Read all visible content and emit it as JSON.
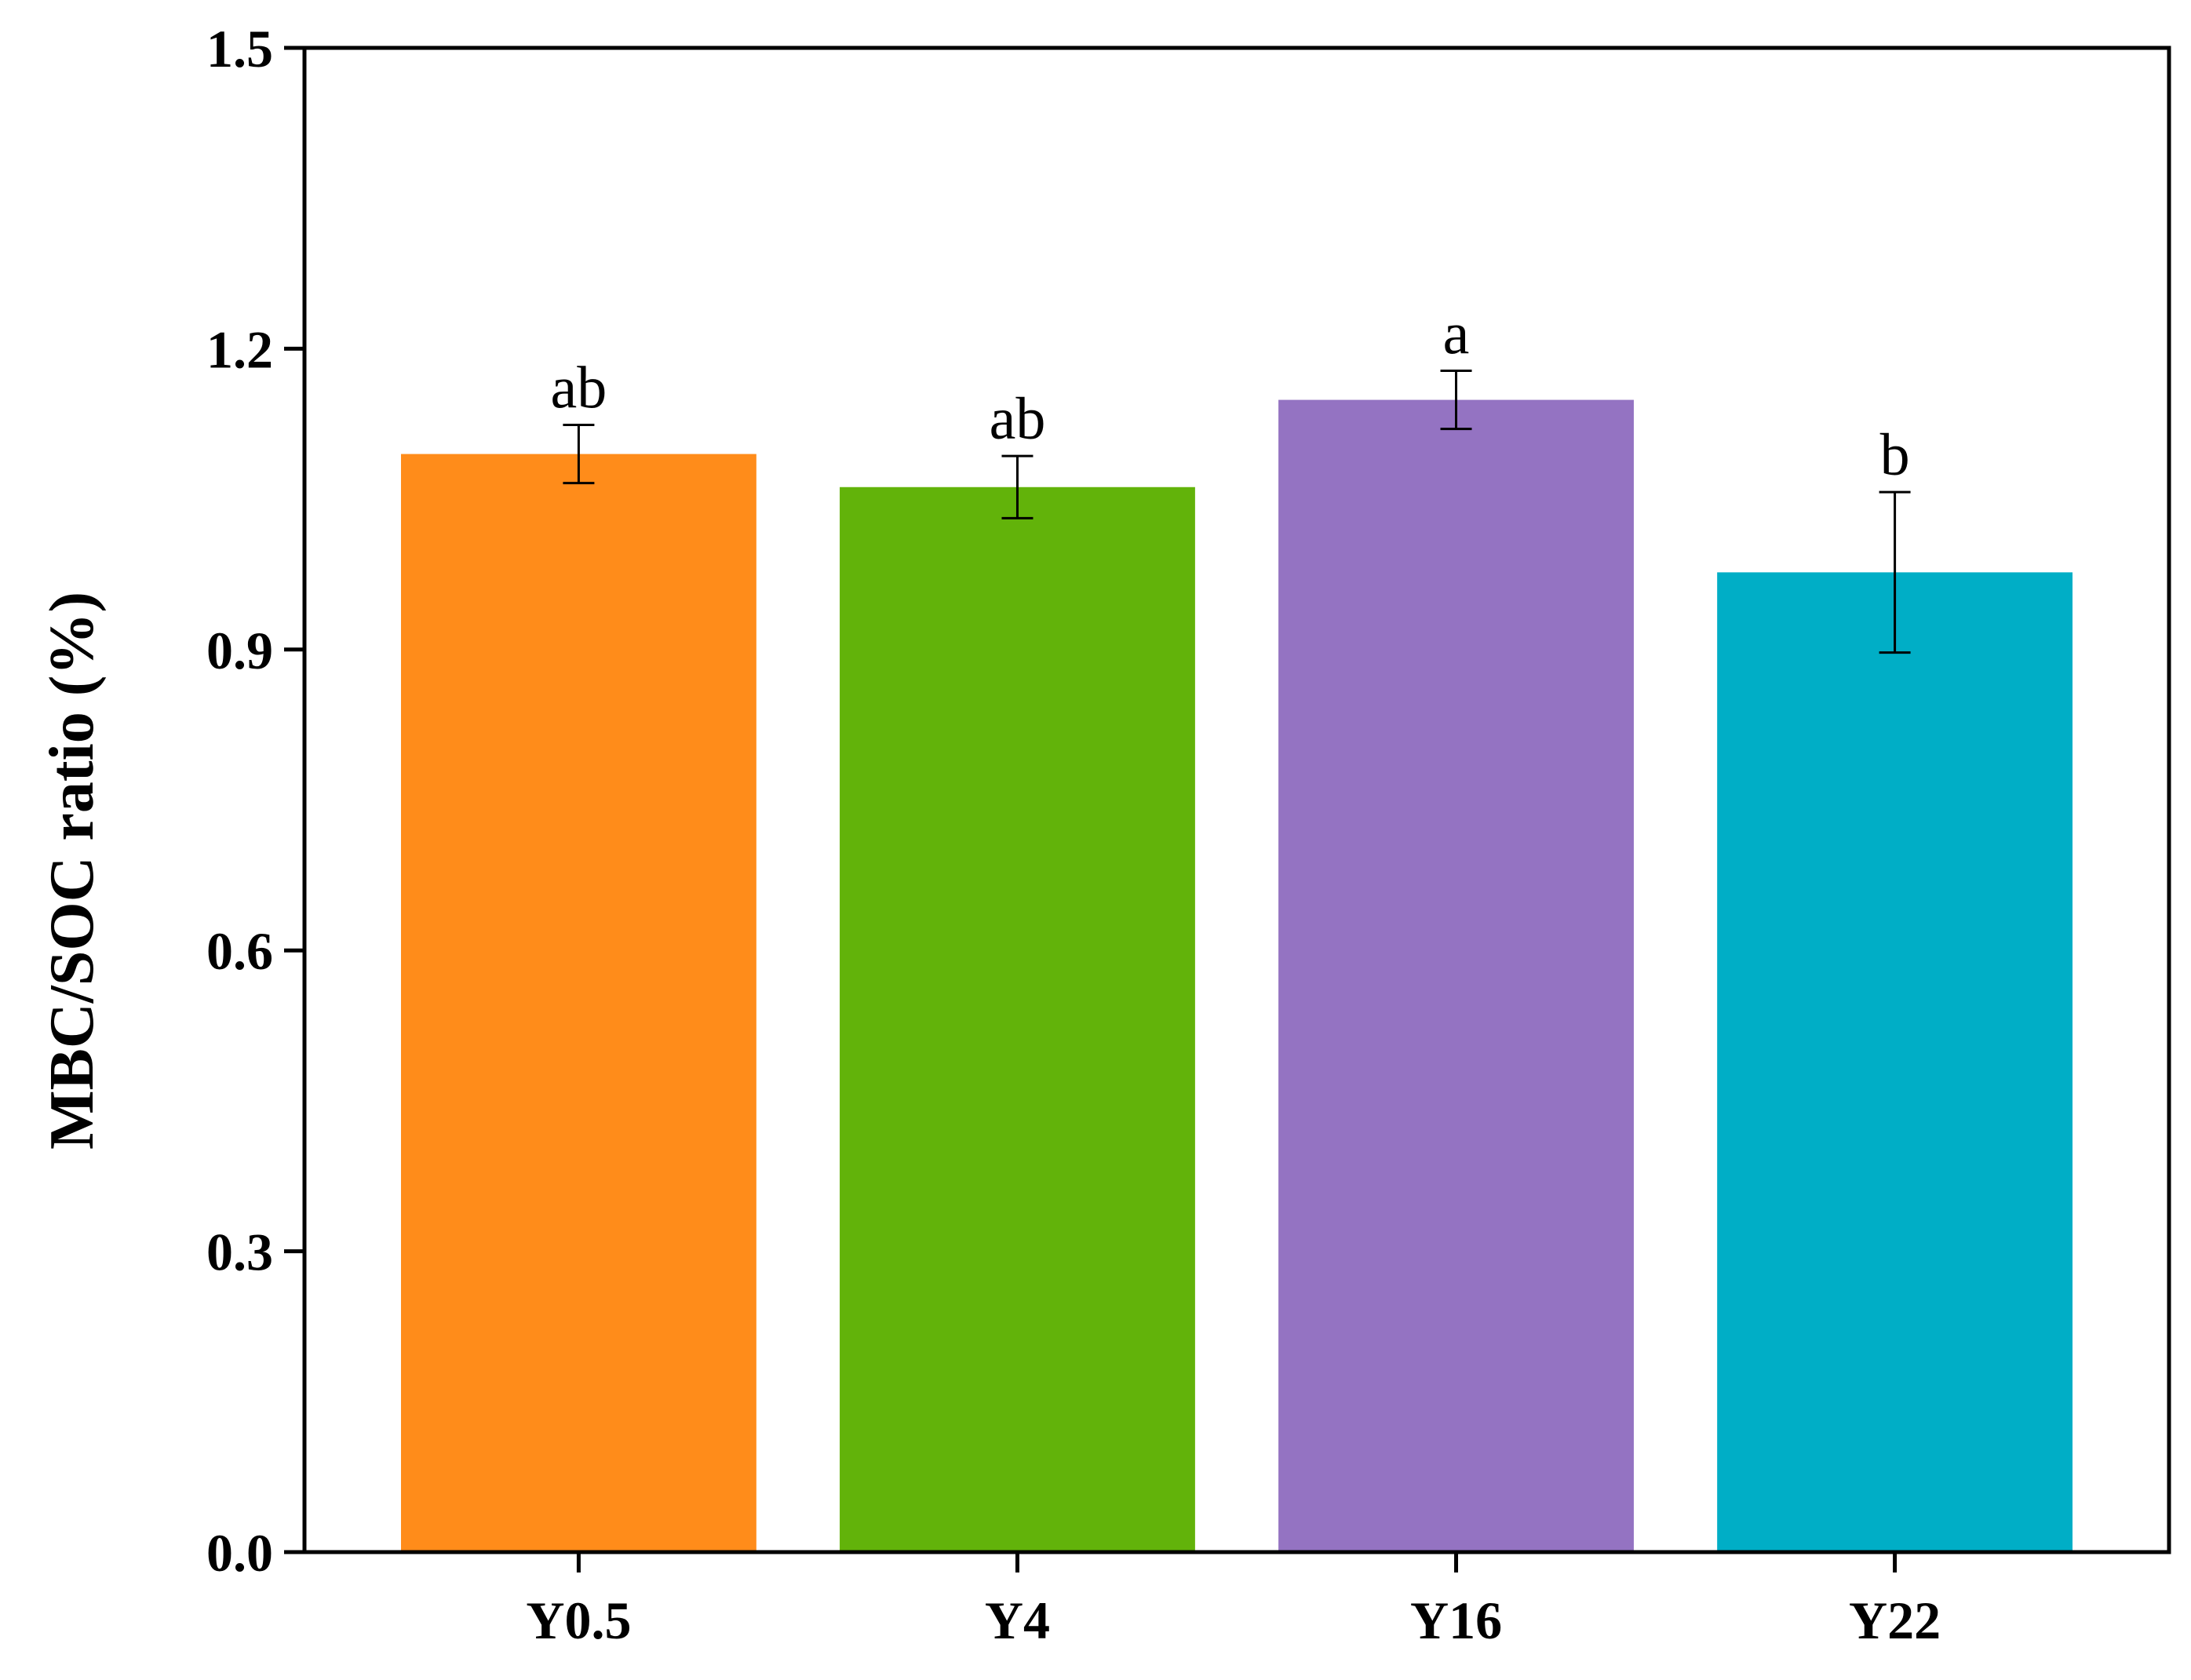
{
  "chart_data": {
    "type": "bar",
    "title": "",
    "xlabel": "",
    "ylabel": "MBC/SOC ratio (%)",
    "ylim": [
      0,
      1.5
    ],
    "yticks": [
      "0.0",
      "0.3",
      "0.6",
      "0.9",
      "1.2",
      "1.5"
    ],
    "categories": [
      "Y0.5",
      "Y4",
      "Y16",
      "Y22"
    ],
    "values": [
      1.095,
      1.062,
      1.149,
      0.977
    ],
    "errors": [
      0.029,
      0.031,
      0.029,
      0.08
    ],
    "significance": [
      "ab",
      "ab",
      "a",
      "b"
    ],
    "colors": [
      "#ff8c1a",
      "#62b30a",
      "#9473c2",
      "#00aec6"
    ],
    "grid": false,
    "legend": "none"
  }
}
